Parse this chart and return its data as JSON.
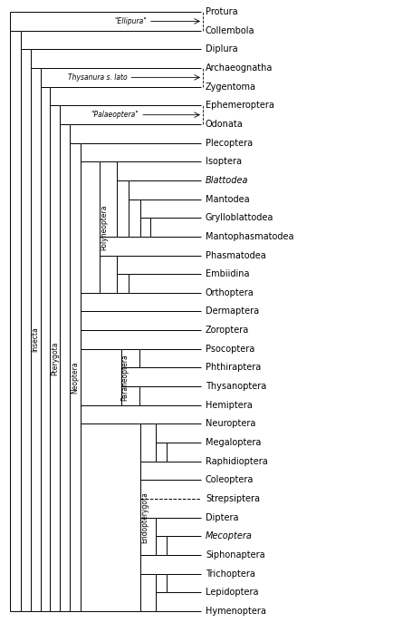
{
  "taxa": [
    "Protura",
    "Collembola",
    "Diplura",
    "Archaeognatha",
    "Zygentoma",
    "Ephemeroptera",
    "Odonata",
    "Plecoptera",
    "Isoptera",
    "Blattodea",
    "Mantodea",
    "Grylloblattodea",
    "Mantophasmatodea",
    "Phasmatodea",
    "Embiidina",
    "Orthoptera",
    "Dermaptera",
    "Zoroptera",
    "Psocoptera",
    "Phthiraptera",
    "Thysanoptera",
    "Hemiptera",
    "Neuroptera",
    "Megaloptera",
    "Raphidioptera",
    "Coleoptera",
    "Strepsiptera",
    "Diptera",
    "Mecoptera",
    "Siphonaptera",
    "Trichoptera",
    "Lepidoptera",
    "Hymenoptera"
  ],
  "italic_taxa": [
    "Blattodea",
    "Mecoptera"
  ],
  "n_taxa": 33,
  "figure_width": 4.35,
  "figure_height": 6.87,
  "dpi": 100,
  "background_color": "#ffffff",
  "line_color": "#000000",
  "line_width": 0.7,
  "font_size_taxa": 7.0,
  "font_size_label": 5.5
}
